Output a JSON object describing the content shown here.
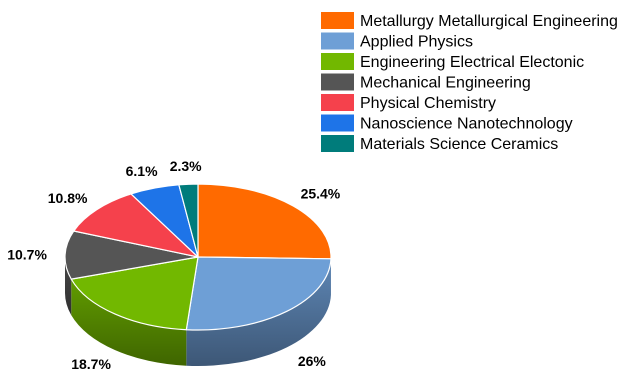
{
  "chart_data": {
    "type": "pie",
    "style": "3d",
    "start_angle_deg": 90,
    "direction": "clockwise",
    "legend_position": "top-right",
    "labels": [
      "Metallurgy Metallurgical Engineering",
      "Applied Physics",
      "Engineering Electrical Electonic",
      "Mechanical Engineering",
      "Physical Chemistry",
      "Nanoscience Nanotechnology",
      "Materials Science Ceramics"
    ],
    "values": [
      25.4,
      26,
      18.7,
      10.7,
      10.8,
      6.1,
      2.3
    ],
    "value_labels": [
      "25.4%",
      "26%",
      "18.7%",
      "10.7%",
      "10.8%",
      "6.1%",
      "2.3%"
    ],
    "colors": [
      "#FF6A00",
      "#6E9FD6",
      "#72B800",
      "#555555",
      "#F5414C",
      "#1E74E8",
      "#007C7B"
    ]
  }
}
